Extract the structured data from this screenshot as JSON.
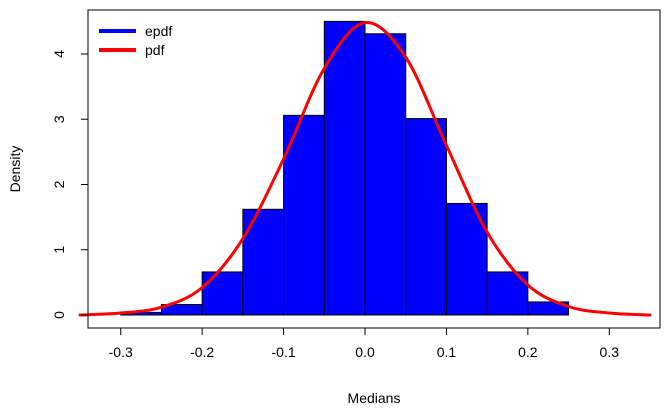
{
  "chart_data": {
    "type": "histogram",
    "xlabel": "Medians",
    "ylabel": "Density",
    "xlim": [
      -0.35,
      0.35
    ],
    "ylim": [
      0,
      4.5
    ],
    "x_ticks": [
      -0.3,
      -0.2,
      -0.1,
      0.0,
      0.1,
      0.2,
      0.3
    ],
    "x_tick_labels": [
      "-0.3",
      "-0.2",
      "-0.1",
      "0.0",
      "0.1",
      "0.2",
      "0.3"
    ],
    "y_ticks": [
      0,
      1,
      2,
      3,
      4
    ],
    "y_tick_labels": [
      "0",
      "1",
      "2",
      "3",
      "4"
    ],
    "grid": false,
    "legend_placement": "top-left",
    "series": [
      {
        "name": "epdf",
        "kind": "histogram",
        "color": "#0000ff",
        "border_color": "#000000",
        "bins": [
          {
            "x0": -0.3,
            "x1": -0.25,
            "density": 0.04
          },
          {
            "x0": -0.25,
            "x1": -0.2,
            "density": 0.16
          },
          {
            "x0": -0.2,
            "x1": -0.15,
            "density": 0.66
          },
          {
            "x0": -0.15,
            "x1": -0.1,
            "density": 1.62
          },
          {
            "x0": -0.1,
            "x1": -0.05,
            "density": 3.06
          },
          {
            "x0": -0.05,
            "x1": 0.0,
            "density": 4.5
          },
          {
            "x0": 0.0,
            "x1": 0.05,
            "density": 4.31
          },
          {
            "x0": 0.05,
            "x1": 0.1,
            "density": 3.01
          },
          {
            "x0": 0.1,
            "x1": 0.15,
            "density": 1.71
          },
          {
            "x0": 0.15,
            "x1": 0.2,
            "density": 0.66
          },
          {
            "x0": 0.2,
            "x1": 0.25,
            "density": 0.2
          }
        ]
      },
      {
        "name": "pdf",
        "kind": "line",
        "color": "#ff0000",
        "x": [
          -0.35,
          -0.3,
          -0.25,
          -0.2,
          -0.15,
          -0.1,
          -0.05,
          0.0,
          0.05,
          0.1,
          0.15,
          0.2,
          0.25,
          0.3,
          0.35
        ],
        "y": [
          0.0,
          0.03,
          0.12,
          0.42,
          1.17,
          2.39,
          3.78,
          4.48,
          3.95,
          2.6,
          1.27,
          0.46,
          0.13,
          0.03,
          0.0
        ]
      }
    ]
  }
}
